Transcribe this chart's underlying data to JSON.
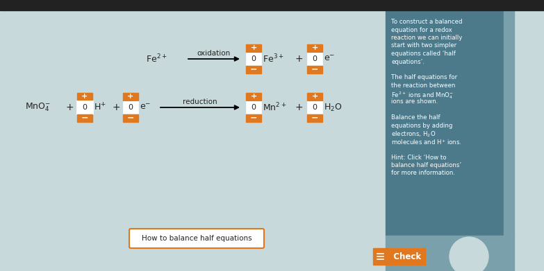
{
  "main_bg": "#c8d9dc",
  "panel_color": "#4d7a8a",
  "panel_side_color": "#7aa0ac",
  "orange": "#e07820",
  "white": "#ffffff",
  "dark_text": "#222222",
  "light_text": "#ffffff",
  "top_bar_color": "#222222",
  "highlight_border": "#4466bb",
  "oxidation_label": "oxidation",
  "reduction_label": "reduction",
  "fe2_label": "Fe$^{2+}$",
  "fe3_label": "Fe$^{3+}$",
  "e_label": "e$^{-}$",
  "mno4_label": "MnO$_4^{-}$",
  "h_label": "H$^{+}$",
  "mn2_label": "Mn$^{2+}$",
  "h2o_label": "H$_2$O",
  "right_panel_lines": [
    "To construct a balanced",
    "equation for a redox",
    "reaction we can initially",
    "start with two simpler",
    "equations called ‘half",
    "equations’.",
    "",
    "The half equations for",
    "the reaction between",
    "Fe$^{2+}$ ions and MnO$_4^{-}$",
    "ions are shown.",
    "",
    "Balance the half",
    "equations by adding",
    "electrons, H$_2$O",
    "molecules and H$^{+}$ ions.",
    "",
    "Hint: Click ‘How to",
    "balance half equations’",
    "for more information."
  ],
  "button_text": "How to balance half equations",
  "check_text": "  Check"
}
